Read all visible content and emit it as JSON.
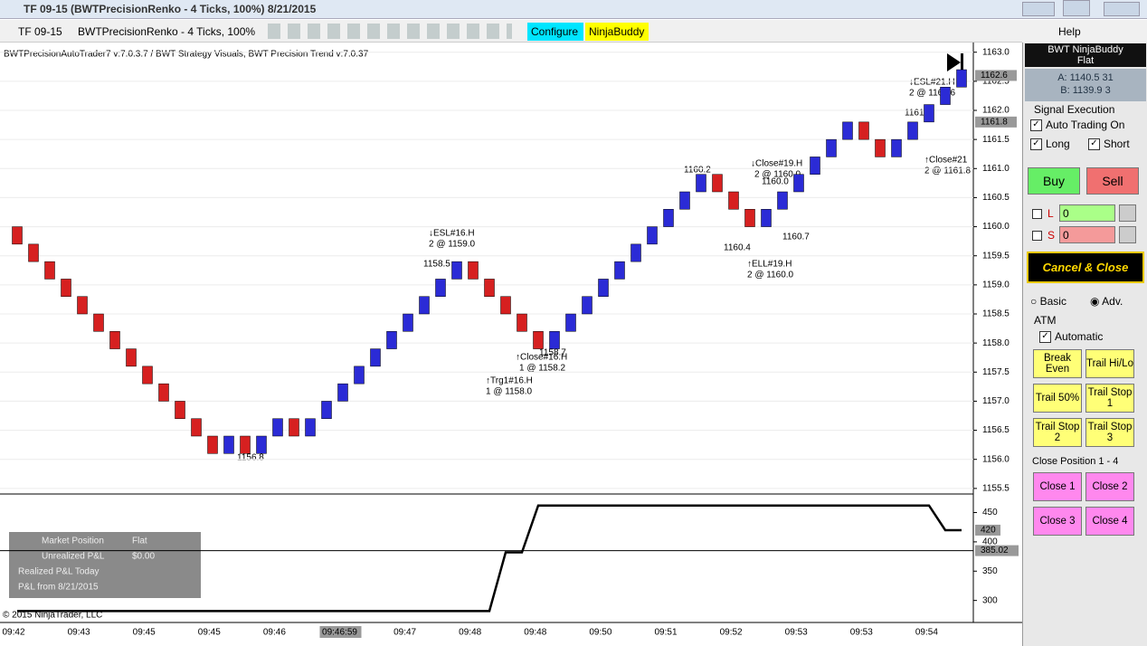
{
  "window": {
    "title": "TF 09-15 (BWTPrecisionRenko - 4 Ticks, 100%)  8/21/2015",
    "help": "Help"
  },
  "toolbar": {
    "instrument": "TF 09-15",
    "chart_type": "BWTPrecisionRenko - 4 Ticks, 100%",
    "configure": "Configure",
    "ninjabuddy": "NinjaBuddy"
  },
  "info": {
    "market_position_label": "Market Position",
    "market_position": "Flat",
    "unrealized_label": "Unrealized P&L",
    "unrealized": "$0.00",
    "realized_label": "Realized P&L Today",
    "pnl_from_label": "P&L from 8/21/2015",
    "copyright": "© 2015 NinjaTrader, LLC"
  },
  "panel": {
    "title": "BWT NinjaBuddy",
    "status": "Flat",
    "ask": "A: 1140.5 31",
    "bid": "B: 1139.9 3",
    "signal_execution": "Signal Execution",
    "auto_trading": "Auto Trading On",
    "long": "Long",
    "short": "Short",
    "buy": "Buy",
    "sell": "Sell",
    "l_label": "L",
    "l_value": "0",
    "s_label": "S",
    "s_value": "0",
    "cancel_close": "Cancel & Close",
    "basic": "Basic",
    "adv": "Adv.",
    "atm": "ATM",
    "automatic": "Automatic",
    "atm_buttons": [
      "Break Even",
      "Trail Hi/Lo",
      "Trail 50%",
      "Trail Stop 1",
      "Trail Stop 2",
      "Trail Stop 3"
    ],
    "close_position": "Close Position 1 - 4",
    "close_buttons": [
      "Close 1",
      "Close 2",
      "Close 3",
      "Close 4"
    ]
  },
  "chart_data": [
    {
      "type": "renko",
      "title": "BWTPrecisionAutoTrader7 v:7.0.3.7 / BWT Strategy Visuals, BWT Precision Trend v:7.0.37",
      "up_color": "#2b2bd6",
      "down_color": "#d62020",
      "open": [
        1160.0,
        1159.7,
        1159.4,
        1159.1,
        1158.8,
        1158.5,
        1158.2,
        1157.9,
        1157.6,
        1157.3,
        1157.0,
        1156.7,
        1156.4,
        1156.1,
        1156.4,
        1156.1,
        1156.4,
        1156.7,
        1156.4,
        1156.7,
        1157.0,
        1157.3,
        1157.6,
        1157.9,
        1158.2,
        1158.5,
        1158.8,
        1159.1,
        1159.4,
        1159.1,
        1158.8,
        1158.5,
        1158.2,
        1157.9,
        1158.2,
        1158.5,
        1158.8,
        1159.1,
        1159.4,
        1159.7,
        1160.0,
        1160.3,
        1160.6,
        1160.9,
        1160.6,
        1160.3,
        1160.0,
        1160.3,
        1160.6,
        1160.9,
        1161.2,
        1161.5,
        1161.8,
        1161.5,
        1161.2,
        1161.5,
        1161.8,
        1162.1,
        1162.4
      ],
      "close": [
        1159.7,
        1159.4,
        1159.1,
        1158.8,
        1158.5,
        1158.2,
        1157.9,
        1157.6,
        1157.3,
        1157.0,
        1156.7,
        1156.4,
        1156.1,
        1156.4,
        1156.1,
        1156.4,
        1156.7,
        1156.4,
        1156.7,
        1157.0,
        1157.3,
        1157.6,
        1157.9,
        1158.2,
        1158.5,
        1158.8,
        1159.1,
        1159.4,
        1159.1,
        1158.8,
        1158.5,
        1158.2,
        1157.9,
        1158.2,
        1158.5,
        1158.8,
        1159.1,
        1159.4,
        1159.7,
        1160.0,
        1160.3,
        1160.6,
        1160.9,
        1160.6,
        1160.3,
        1160.0,
        1160.3,
        1160.6,
        1160.9,
        1161.2,
        1161.5,
        1161.8,
        1161.5,
        1161.2,
        1161.5,
        1161.8,
        1162.1,
        1162.4,
        1162.7
      ],
      "ylim": [
        1155.42,
        1163.12
      ],
      "yticks": [
        {
          "value": 1163,
          "label": "1163.0"
        },
        1162.5,
        {
          "value": 1162,
          "label": "1162.0"
        },
        1161.5,
        {
          "value": 1161,
          "label": "1161.0"
        },
        1160.5,
        {
          "value": 1160,
          "label": "1160.0"
        },
        1159.5,
        {
          "value": 1159,
          "label": "1159.0"
        },
        1158.5,
        {
          "value": 1158,
          "label": "1158.0"
        },
        1157.5,
        {
          "value": 1157,
          "label": "1157.0"
        },
        1156.5,
        {
          "value": 1156,
          "label": "1156.0"
        },
        1155.5
      ],
      "price_markers": [
        1162.6,
        1161.8
      ],
      "grid": true,
      "annotations": [
        "1156.8",
        "↓ESL#16.H",
        "2 @ 1159.0",
        "1158.5",
        "↑Close#16.H",
        "1 @ 1158.2",
        "1158.7",
        "↑Trg1#16.H",
        "1 @ 1158.0",
        "1160.2",
        "1160.4",
        "↓Close#19.H",
        "2 @ 1160.0",
        "1160.0",
        "↑ELL#19.H",
        "2 @ 1160.0",
        "1160.7",
        "↓ESL#21.H",
        "2 @ 1161.6",
        "1161.2",
        "↑Close#21",
        "2 @ 1161.8"
      ],
      "time_labels": [
        "09:42",
        "09:43",
        "09:45",
        "09:45",
        "09:46",
        "09:46:59",
        "09:47",
        "09:48",
        "09:48",
        "09:50",
        "09:51",
        "09:52",
        "09:53",
        "09:53",
        "09:54"
      ]
    },
    {
      "type": "line",
      "color": "#000000",
      "values": [
        282,
        282,
        282,
        282,
        282,
        282,
        282,
        282,
        282,
        282,
        282,
        282,
        282,
        282,
        282,
        282,
        282,
        282,
        282,
        282,
        282,
        282,
        282,
        282,
        282,
        282,
        282,
        282,
        282,
        282,
        382,
        382,
        462,
        462,
        462,
        462,
        462,
        462,
        462,
        462,
        462,
        462,
        462,
        462,
        462,
        462,
        462,
        462,
        462,
        462,
        462,
        462,
        462,
        462,
        462,
        462,
        462,
        420,
        420
      ],
      "ylim": [
        265.5,
        475.5
      ],
      "yticks": [
        450,
        400,
        350,
        300
      ],
      "markers": [
        420,
        385.02
      ]
    }
  ]
}
